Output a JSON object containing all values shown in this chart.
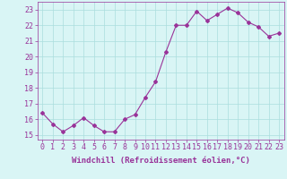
{
  "x": [
    0,
    1,
    2,
    3,
    4,
    5,
    6,
    7,
    8,
    9,
    10,
    11,
    12,
    13,
    14,
    15,
    16,
    17,
    18,
    19,
    20,
    21,
    22,
    23
  ],
  "y": [
    16.4,
    15.7,
    15.2,
    15.6,
    16.1,
    15.6,
    15.2,
    15.2,
    16.0,
    16.3,
    17.4,
    18.4,
    20.3,
    22.0,
    22.0,
    22.9,
    22.3,
    22.7,
    23.1,
    22.8,
    22.2,
    21.9,
    21.3,
    21.5
  ],
  "line_color": "#993399",
  "marker": "D",
  "marker_size": 2,
  "bg_color": "#d9f5f5",
  "grid_color": "#aadddd",
  "xlabel": "Windchill (Refroidissement éolien,°C)",
  "xlabel_color": "#993399",
  "ylabel_ticks": [
    15,
    16,
    17,
    18,
    19,
    20,
    21,
    22,
    23
  ],
  "xlim": [
    -0.5,
    23.5
  ],
  "ylim": [
    14.7,
    23.5
  ],
  "tick_color": "#993399",
  "axis_color": "#993399",
  "label_fontsize": 6.5,
  "tick_fontsize": 6.0
}
